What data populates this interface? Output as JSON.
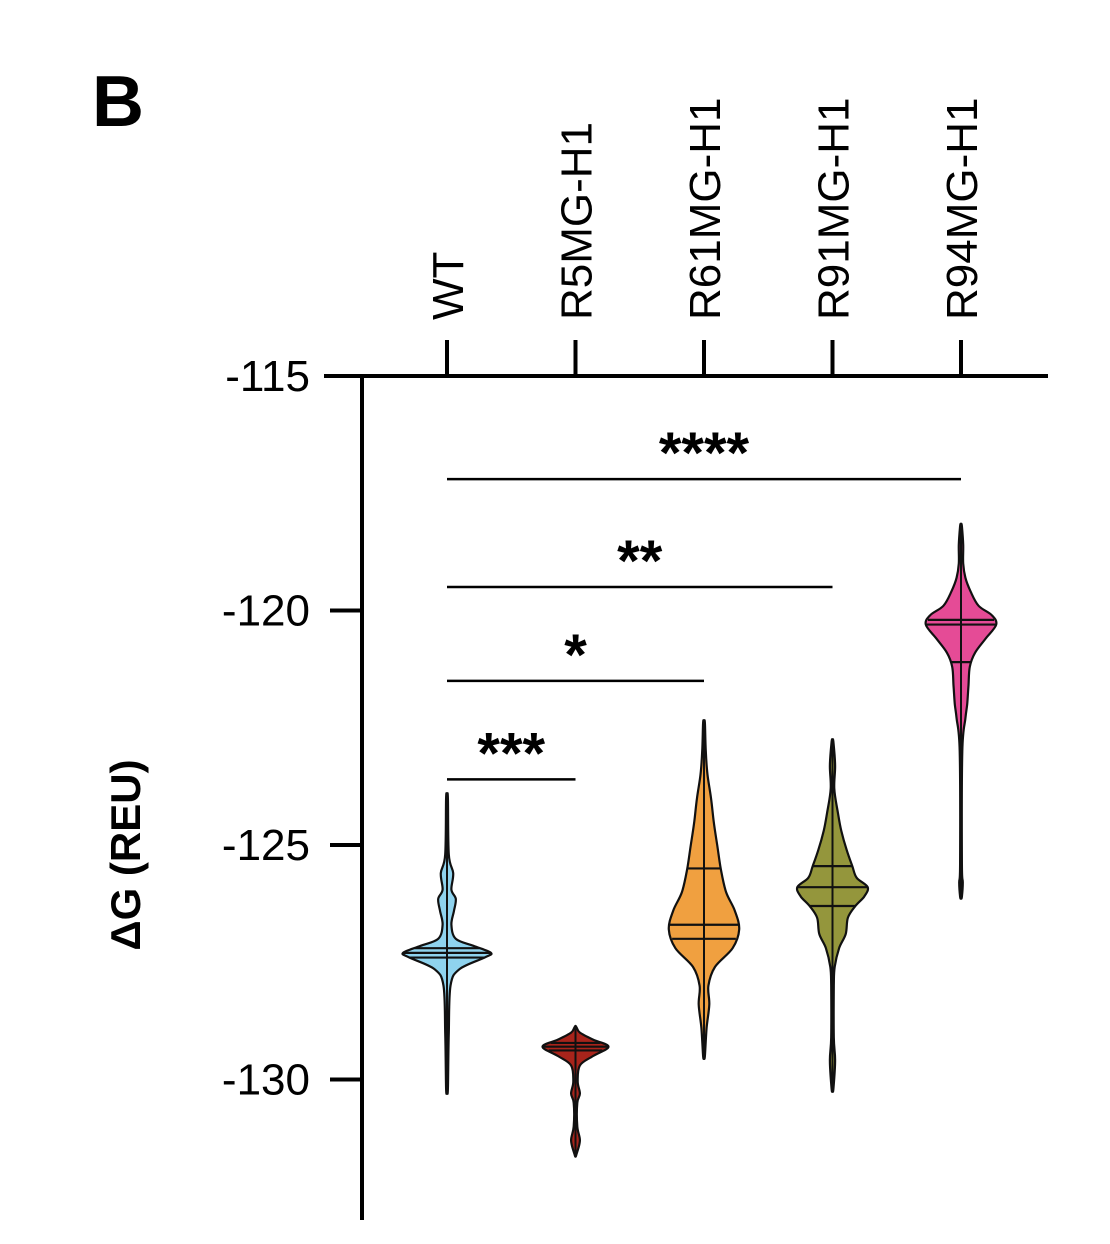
{
  "panel_label": "B",
  "chart_data": {
    "type": "violin",
    "title": "",
    "ylabel": "ΔG (REU)",
    "xlabel": "",
    "ylim": [
      -132.8,
      -115
    ],
    "y_ticks": [
      {
        "value": -115,
        "label": "-115"
      },
      {
        "value": -120,
        "label": "-120"
      },
      {
        "value": -125,
        "label": "-125"
      },
      {
        "value": -130,
        "label": "-130"
      }
    ],
    "x_axis_position": "top",
    "categories": [
      "WT",
      "R5MG-H1",
      "R61MG-H1",
      "R91MG-H1",
      "R94MG-H1"
    ],
    "series": [
      {
        "category": "WT",
        "color": "#8fd3ee",
        "median": -127.3,
        "quartiles": [
          -127.4,
          -127.2
        ],
        "density": [
          {
            "y": -130.2,
            "w": 0.02
          },
          {
            "y": -129.0,
            "w": 0.04
          },
          {
            "y": -128.0,
            "w": 0.08
          },
          {
            "y": -127.65,
            "w": 0.28
          },
          {
            "y": -127.4,
            "w": 0.85
          },
          {
            "y": -127.3,
            "w": 1.0
          },
          {
            "y": -127.15,
            "w": 0.6
          },
          {
            "y": -127.0,
            "w": 0.2
          },
          {
            "y": -126.7,
            "w": 0.1
          },
          {
            "y": -126.4,
            "w": 0.16
          },
          {
            "y": -126.15,
            "w": 0.2
          },
          {
            "y": -125.95,
            "w": 0.1
          },
          {
            "y": -125.6,
            "w": 0.14
          },
          {
            "y": -125.2,
            "w": 0.04
          },
          {
            "y": -124.0,
            "w": 0.02
          }
        ]
      },
      {
        "category": "R5MG-H1",
        "color": "#a8241b",
        "median": -129.3,
        "quartiles": [
          -129.38,
          -129.22
        ],
        "density": [
          {
            "y": -131.6,
            "w": 0.02
          },
          {
            "y": -131.3,
            "w": 0.1
          },
          {
            "y": -131.0,
            "w": 0.04
          },
          {
            "y": -130.5,
            "w": 0.04
          },
          {
            "y": -130.3,
            "w": 0.1
          },
          {
            "y": -130.05,
            "w": 0.05
          },
          {
            "y": -129.7,
            "w": 0.1
          },
          {
            "y": -129.5,
            "w": 0.4
          },
          {
            "y": -129.3,
            "w": 0.75
          },
          {
            "y": -129.15,
            "w": 0.4
          },
          {
            "y": -129.0,
            "w": 0.1
          },
          {
            "y": -128.9,
            "w": 0.03
          }
        ]
      },
      {
        "category": "R61MG-H1",
        "color": "#f0a040",
        "median": -126.7,
        "quartiles": [
          -127.0,
          -125.5
        ],
        "density": [
          {
            "y": -129.5,
            "w": 0.02
          },
          {
            "y": -128.9,
            "w": 0.06
          },
          {
            "y": -128.4,
            "w": 0.12
          },
          {
            "y": -128.0,
            "w": 0.1
          },
          {
            "y": -127.6,
            "w": 0.25
          },
          {
            "y": -127.2,
            "w": 0.65
          },
          {
            "y": -126.8,
            "w": 0.8
          },
          {
            "y": -126.4,
            "w": 0.7
          },
          {
            "y": -126.0,
            "w": 0.5
          },
          {
            "y": -125.5,
            "w": 0.38
          },
          {
            "y": -125.0,
            "w": 0.3
          },
          {
            "y": -124.5,
            "w": 0.22
          },
          {
            "y": -124.0,
            "w": 0.16
          },
          {
            "y": -123.5,
            "w": 0.08
          },
          {
            "y": -123.0,
            "w": 0.04
          },
          {
            "y": -122.4,
            "w": 0.02
          }
        ]
      },
      {
        "category": "R91MG-H1",
        "color": "#94963c",
        "median": -125.9,
        "quartiles": [
          -126.3,
          -125.45
        ],
        "density": [
          {
            "y": -130.2,
            "w": 0.02
          },
          {
            "y": -129.6,
            "w": 0.06
          },
          {
            "y": -129.1,
            "w": 0.03
          },
          {
            "y": -128.0,
            "w": 0.03
          },
          {
            "y": -127.6,
            "w": 0.05
          },
          {
            "y": -127.2,
            "w": 0.15
          },
          {
            "y": -126.9,
            "w": 0.3
          },
          {
            "y": -126.55,
            "w": 0.35
          },
          {
            "y": -126.3,
            "w": 0.52
          },
          {
            "y": -126.1,
            "w": 0.72
          },
          {
            "y": -125.9,
            "w": 0.8
          },
          {
            "y": -125.7,
            "w": 0.55
          },
          {
            "y": -125.45,
            "w": 0.45
          },
          {
            "y": -125.1,
            "w": 0.32
          },
          {
            "y": -124.7,
            "w": 0.2
          },
          {
            "y": -124.3,
            "w": 0.12
          },
          {
            "y": -123.8,
            "w": 0.04
          },
          {
            "y": -123.3,
            "w": 0.06
          },
          {
            "y": -122.8,
            "w": 0.02
          }
        ]
      },
      {
        "category": "R94MG-H1",
        "color": "#e54b96",
        "median": -120.3,
        "quartiles": [
          -121.1,
          -120.2
        ],
        "density": [
          {
            "y": -126.1,
            "w": 0.02
          },
          {
            "y": -125.8,
            "w": 0.04
          },
          {
            "y": -125.4,
            "w": 0.02
          },
          {
            "y": -123.0,
            "w": 0.03
          },
          {
            "y": -122.3,
            "w": 0.1
          },
          {
            "y": -122.0,
            "w": 0.14
          },
          {
            "y": -121.6,
            "w": 0.17
          },
          {
            "y": -121.2,
            "w": 0.2
          },
          {
            "y": -120.9,
            "w": 0.32
          },
          {
            "y": -120.6,
            "w": 0.56
          },
          {
            "y": -120.3,
            "w": 0.8
          },
          {
            "y": -120.1,
            "w": 0.7
          },
          {
            "y": -119.9,
            "w": 0.4
          },
          {
            "y": -119.6,
            "w": 0.22
          },
          {
            "y": -119.3,
            "w": 0.1
          },
          {
            "y": -119.0,
            "w": 0.05
          },
          {
            "y": -118.6,
            "w": 0.05
          },
          {
            "y": -118.2,
            "w": 0.02
          }
        ]
      }
    ],
    "significance": [
      {
        "from": "WT",
        "to": "R5MG-H1",
        "y": -123.6,
        "label": "***"
      },
      {
        "from": "WT",
        "to": "R61MG-H1",
        "y": -121.5,
        "label": "*"
      },
      {
        "from": "WT",
        "to": "R91MG-H1",
        "y": -119.5,
        "label": "**"
      },
      {
        "from": "WT",
        "to": "R94MG-H1",
        "y": -117.2,
        "label": "****"
      }
    ]
  }
}
